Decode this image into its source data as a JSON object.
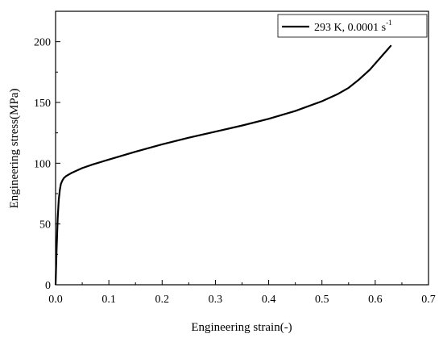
{
  "chart_data": {
    "type": "line",
    "xlabel": "Engineering strain(-)",
    "ylabel": "Engineering stress(MPa)",
    "xlim": [
      0,
      0.7
    ],
    "ylim": [
      0,
      225
    ],
    "x_ticks": [
      0.0,
      0.1,
      0.2,
      0.3,
      0.4,
      0.5,
      0.6,
      0.7
    ],
    "x_tick_labels": [
      "0.0",
      "0.1",
      "0.2",
      "0.3",
      "0.4",
      "0.5",
      "0.6",
      "0.7"
    ],
    "y_ticks": [
      0,
      50,
      100,
      150,
      200
    ],
    "y_tick_labels": [
      "0",
      "50",
      "100",
      "150",
      "200"
    ],
    "grid": false,
    "legend_position": "top-right",
    "series": [
      {
        "name": "293 K, 0.0001 s",
        "name_superscript": "-1",
        "color": "#000000",
        "x": [
          0.0,
          0.002,
          0.004,
          0.006,
          0.008,
          0.01,
          0.013,
          0.016,
          0.02,
          0.03,
          0.04,
          0.05,
          0.07,
          0.1,
          0.15,
          0.2,
          0.25,
          0.3,
          0.35,
          0.4,
          0.45,
          0.5,
          0.53,
          0.55,
          0.57,
          0.59,
          0.61,
          0.62,
          0.63
        ],
        "y": [
          0,
          30,
          55,
          70,
          78,
          83,
          86,
          88,
          89.5,
          92,
          94,
          96,
          99,
          103,
          109.5,
          115.5,
          121,
          126,
          131,
          136.5,
          143,
          151,
          157,
          162,
          169,
          177,
          187,
          192,
          197
        ]
      }
    ]
  }
}
